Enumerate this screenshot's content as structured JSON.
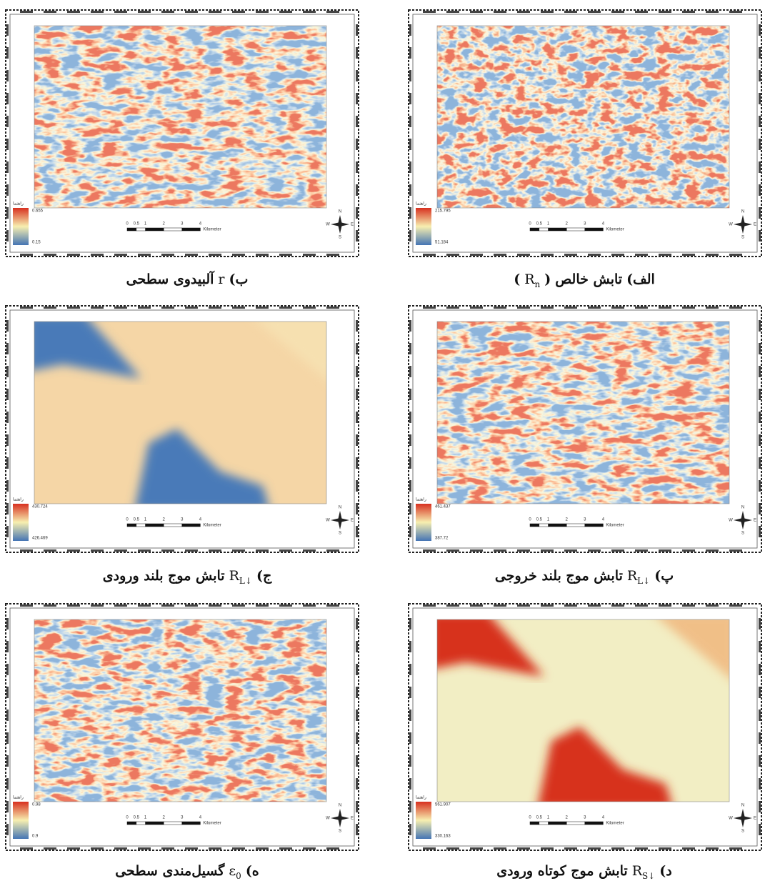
{
  "panels": [
    {
      "caption": [
        "الف)",
        "تابش خالص",
        "(",
        {
          "base": "R",
          "sub": "n"
        },
        ")"
      ],
      "legend_title": "راهنما",
      "legend_max": 215.795,
      "legend_min": 51.184
    },
    {
      "caption": [
        "ب)",
        {
          "base": "r"
        },
        "آلبیدوی سطحی"
      ],
      "legend_title": "راهنما",
      "legend_max": 0.655,
      "legend_min": 0.15
    },
    {
      "caption": [
        "پ)",
        {
          "base": "R",
          "sub": "L↓"
        },
        "تابش موج بلند خروجی"
      ],
      "legend_title": "راهنما",
      "legend_max": 461.437,
      "legend_min": 387.72
    },
    {
      "caption": [
        "ج)",
        {
          "base": "R",
          "sub": "L↓"
        },
        "تابش موج بلند ورودی"
      ],
      "legend_title": "راهنما",
      "legend_max": 430.724,
      "legend_min": 426.469
    },
    {
      "caption": [
        "د)",
        {
          "base": "R",
          "sub": "S↓"
        },
        "تابش موج کوتاه ورودی"
      ],
      "legend_title": "راهنما",
      "legend_max": 561.907,
      "legend_min": 330.163
    },
    {
      "caption": [
        "ه)",
        {
          "base": "ε",
          "sub": "0"
        },
        "گسیل‌مندی سطحی"
      ],
      "legend_title": "راهنما",
      "legend_max": 0.98,
      "legend_min": 0.9
    }
  ],
  "scale_bar": {
    "ticks": [
      "0",
      "0.5",
      "1",
      "2",
      "3",
      "4"
    ],
    "unit": "Kilometer"
  },
  "compass": {
    "n": "N",
    "s": "S",
    "e": "E",
    "w": "W"
  }
}
